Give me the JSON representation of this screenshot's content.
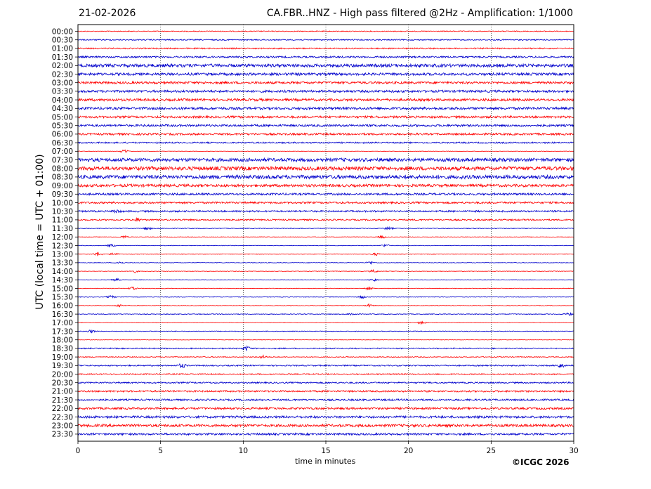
{
  "header": {
    "date": "21-02-2026",
    "title": "CA.FBR..HNZ - High pass filtered @2Hz - Amplification: 1/1000"
  },
  "footer": {
    "copyright": "©ICGC 2026"
  },
  "colors": {
    "red_trace": "#ff0000",
    "blue_trace": "#0000cc",
    "gridline": "#000000"
  },
  "chart_data": {
    "type": "line",
    "title": "CA.FBR..HNZ - High pass filtered @2Hz - Amplification: 1/1000",
    "xlabel": "time in minutes",
    "ylabel": "UTC (local time = UTC + 01:00)",
    "xlim": [
      0,
      30
    ],
    "x_ticks": [
      0,
      5,
      10,
      15,
      20,
      25,
      30
    ],
    "grid": "vertical dotted lines every 5 minutes",
    "y_ticks": [
      "00:00",
      "00:30",
      "01:00",
      "01:30",
      "02:00",
      "02:30",
      "03:00",
      "03:30",
      "04:00",
      "04:30",
      "05:00",
      "05:30",
      "06:00",
      "06:30",
      "07:00",
      "07:30",
      "08:00",
      "08:30",
      "09:00",
      "09:30",
      "10:00",
      "10:30",
      "11:00",
      "11:30",
      "12:00",
      "12:30",
      "13:00",
      "13:30",
      "14:00",
      "14:30",
      "15:00",
      "15:30",
      "16:00",
      "16:30",
      "17:00",
      "17:30",
      "18:00",
      "18:30",
      "19:00",
      "19:30",
      "20:00",
      "20:30",
      "21:00",
      "21:30",
      "22:00",
      "22:30",
      "23:00",
      "23:30"
    ],
    "trace_colors": [
      "red",
      "blue",
      "red",
      "blue",
      "blue",
      "blue",
      "red",
      "blue",
      "red",
      "blue",
      "red",
      "blue",
      "red",
      "blue",
      "red",
      "blue",
      "red",
      "blue",
      "red",
      "blue",
      "red",
      "blue",
      "red",
      "blue",
      "red",
      "blue",
      "red",
      "blue",
      "red",
      "blue",
      "red",
      "blue",
      "red",
      "blue",
      "red",
      "blue",
      "red",
      "blue",
      "red",
      "blue",
      "red",
      "blue",
      "red",
      "blue",
      "red",
      "blue",
      "red",
      "blue"
    ],
    "noise_levels": [
      0.6,
      0.8,
      0.9,
      1.2,
      2.2,
      1.8,
      1.6,
      1.6,
      1.7,
      1.7,
      1.5,
      1.5,
      1.4,
      1.0,
      0.3,
      2.4,
      2.6,
      2.6,
      1.9,
      1.4,
      1.3,
      1.2,
      1.0,
      0.5,
      0.4,
      0.4,
      0.4,
      0.4,
      0.4,
      0.4,
      0.4,
      0.4,
      0.4,
      0.5,
      0.3,
      0.5,
      0.3,
      0.8,
      0.6,
      0.9,
      0.8,
      1.0,
      1.2,
      1.2,
      1.4,
      1.6,
      1.8,
      1.4
    ],
    "events": [
      {
        "row": "07:00",
        "minute": 2.8,
        "amplitude": 3.0
      },
      {
        "row": "10:30",
        "minute": 2.3,
        "amplitude": 2.0
      },
      {
        "row": "11:00",
        "minute": 3.6,
        "amplitude": 2.0
      },
      {
        "row": "11:30",
        "minute": 4.2,
        "amplitude": 2.0
      },
      {
        "row": "11:30",
        "minute": 18.8,
        "amplitude": 2.0
      },
      {
        "row": "12:00",
        "minute": 2.8,
        "amplitude": 2.0
      },
      {
        "row": "12:00",
        "minute": 18.4,
        "amplitude": 2.0
      },
      {
        "row": "12:30",
        "minute": 2.0,
        "amplitude": 2.0
      },
      {
        "row": "12:30",
        "minute": 18.6,
        "amplitude": 2.0
      },
      {
        "row": "13:00",
        "minute": 1.2,
        "amplitude": 3.0
      },
      {
        "row": "13:00",
        "minute": 2.2,
        "amplitude": 2.0
      },
      {
        "row": "13:00",
        "minute": 18.0,
        "amplitude": 2.0
      },
      {
        "row": "13:30",
        "minute": 2.5,
        "amplitude": 2.0
      },
      {
        "row": "13:30",
        "minute": 17.7,
        "amplitude": 2.0
      },
      {
        "row": "14:00",
        "minute": 3.4,
        "amplitude": 2.0
      },
      {
        "row": "14:00",
        "minute": 17.9,
        "amplitude": 2.0
      },
      {
        "row": "14:30",
        "minute": 2.3,
        "amplitude": 2.0
      },
      {
        "row": "14:30",
        "minute": 17.9,
        "amplitude": 2.0
      },
      {
        "row": "15:00",
        "minute": 3.3,
        "amplitude": 2.0
      },
      {
        "row": "15:00",
        "minute": 17.6,
        "amplitude": 2.0
      },
      {
        "row": "15:30",
        "minute": 2.0,
        "amplitude": 2.0
      },
      {
        "row": "15:30",
        "minute": 17.2,
        "amplitude": 2.0
      },
      {
        "row": "16:00",
        "minute": 2.5,
        "amplitude": 2.0
      },
      {
        "row": "16:00",
        "minute": 17.6,
        "amplitude": 2.0
      },
      {
        "row": "16:30",
        "minute": 16.6,
        "amplitude": 2.0
      },
      {
        "row": "16:30",
        "minute": 29.7,
        "amplitude": 2.0
      },
      {
        "row": "17:00",
        "minute": 20.8,
        "amplitude": 2.0
      },
      {
        "row": "17:30",
        "minute": 0.8,
        "amplitude": 2.0
      },
      {
        "row": "18:30",
        "minute": 10.2,
        "amplitude": 3.0
      },
      {
        "row": "19:00",
        "minute": 11.2,
        "amplitude": 2.0
      },
      {
        "row": "19:30",
        "minute": 6.3,
        "amplitude": 3.0
      },
      {
        "row": "19:30",
        "minute": 29.2,
        "amplitude": 3.0
      }
    ]
  }
}
